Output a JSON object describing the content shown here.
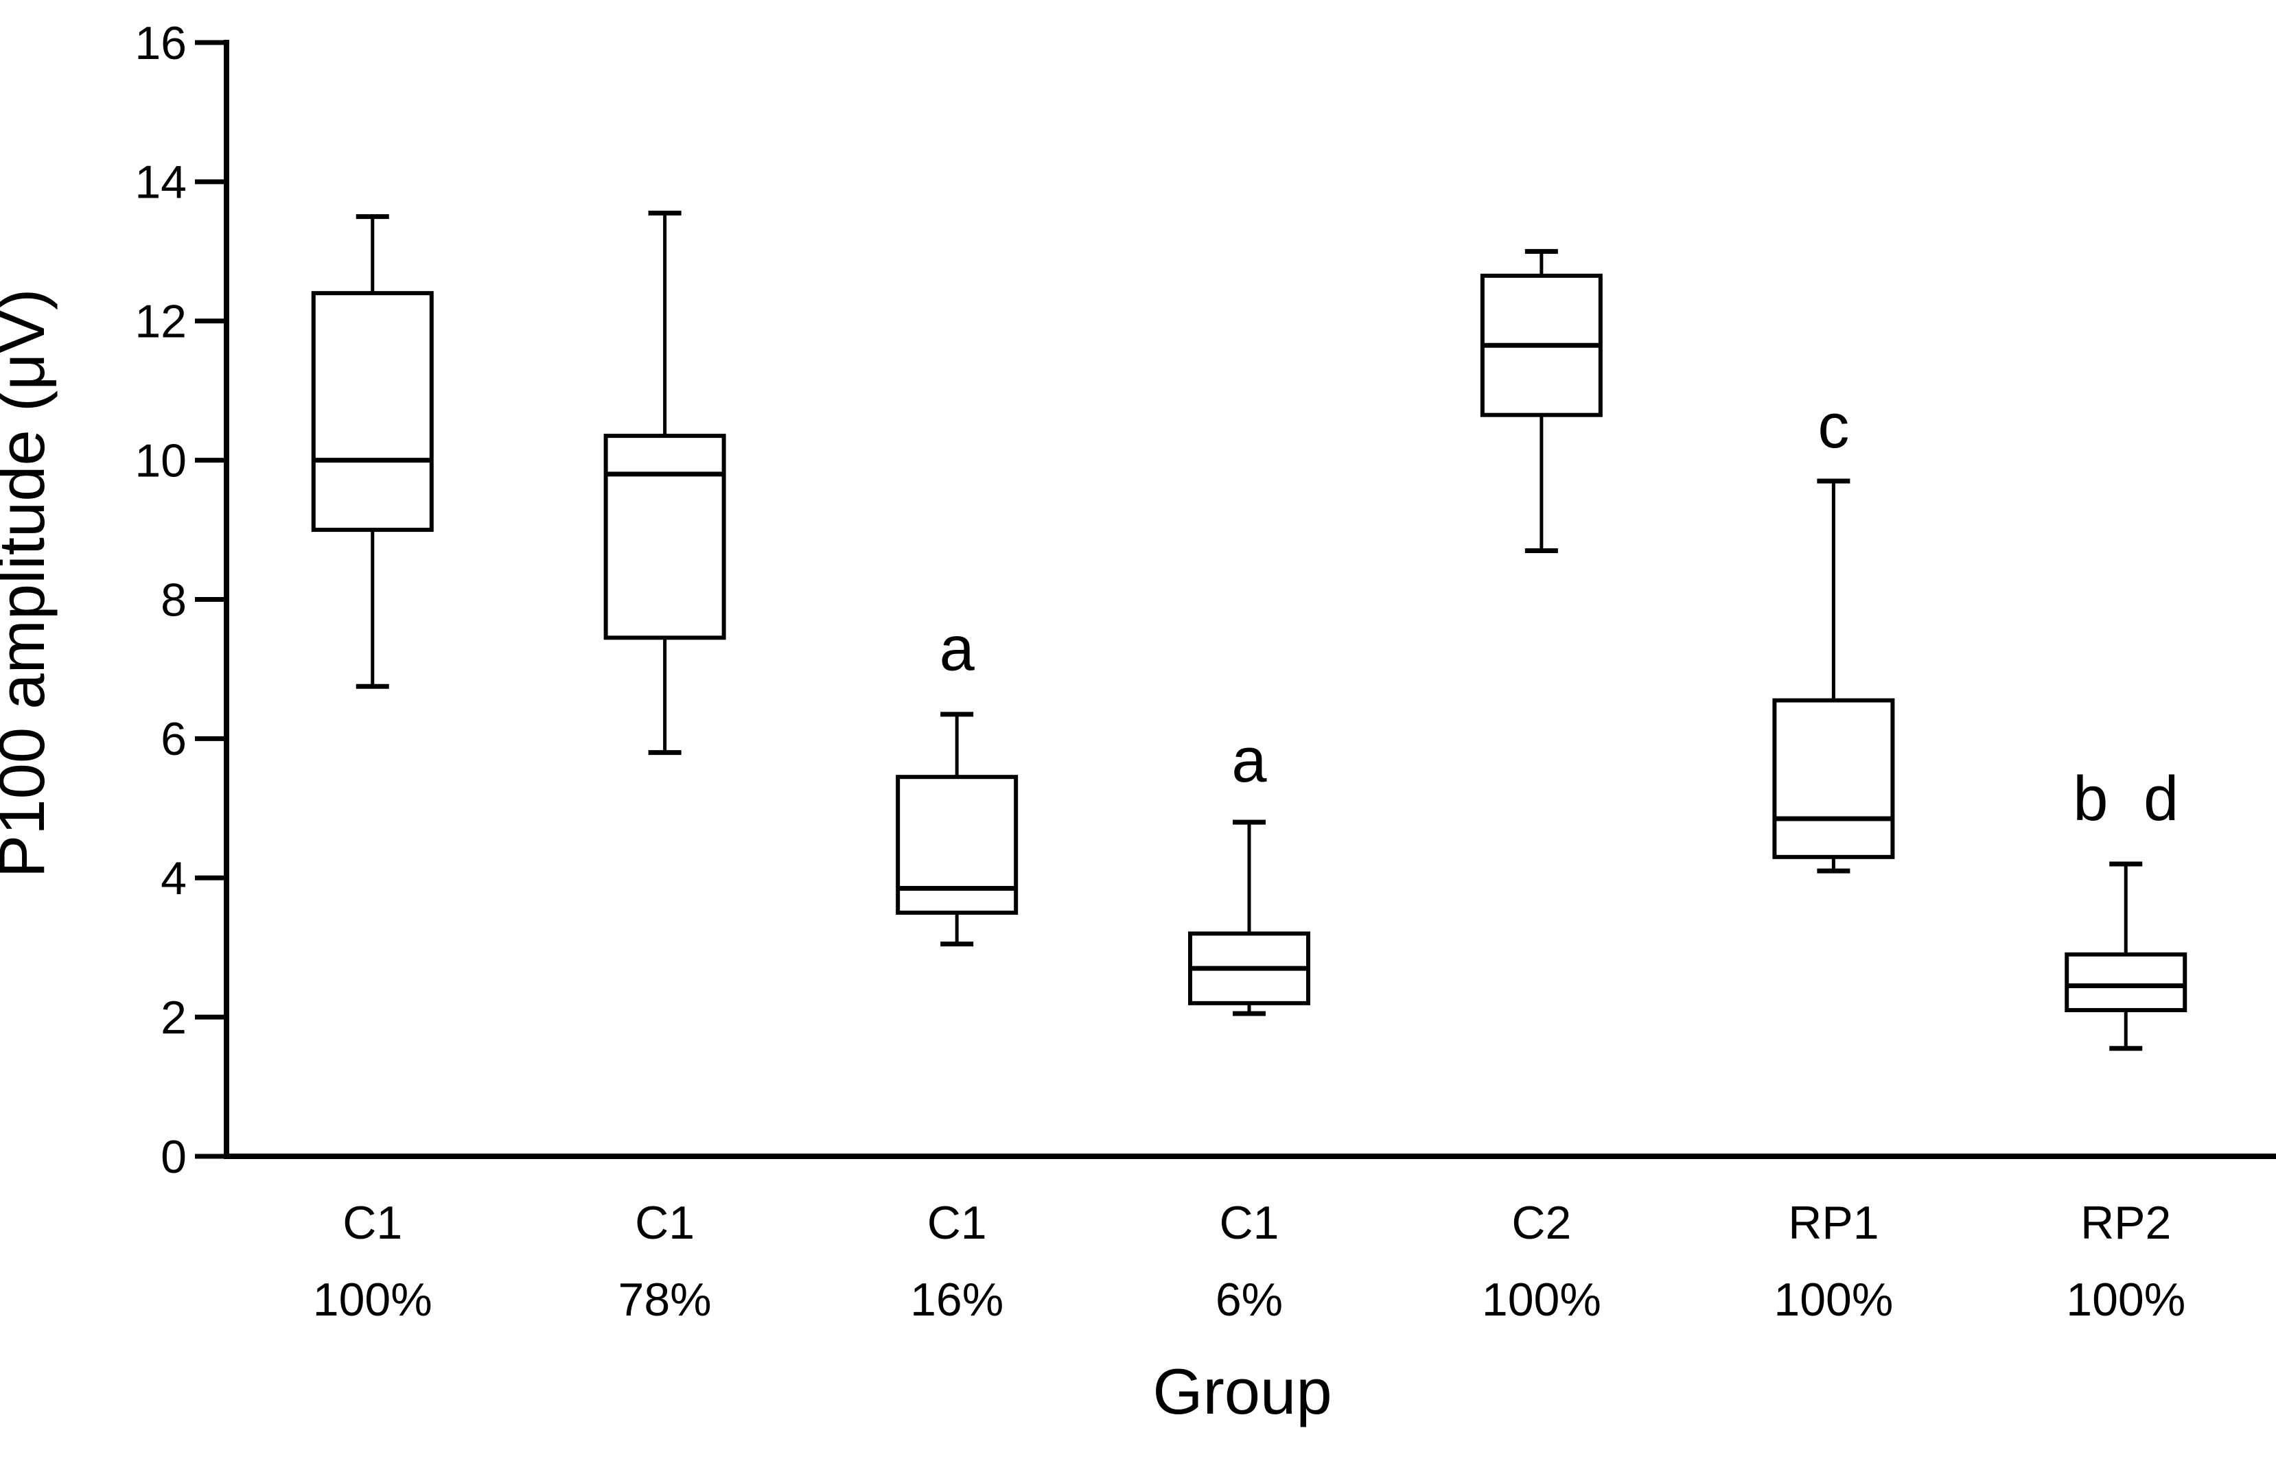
{
  "chart_data": {
    "type": "boxplot",
    "title": "",
    "xlabel": "Group",
    "ylabel": "P100 amplitude (μV)",
    "ylim": [
      0,
      16
    ],
    "yticks": [
      0,
      2,
      4,
      6,
      8,
      10,
      12,
      14,
      16
    ],
    "grid": false,
    "legend": "none",
    "orientation": "vertical",
    "categories": [
      "C1 100%",
      "C1 78%",
      "C1 16%",
      "C1 6%",
      "C2 100%",
      "RP1 100%",
      "RP2 100%"
    ],
    "boxes": [
      {
        "label_line1": "C1",
        "label_line2": "100%",
        "x_frac": 0.0714,
        "min": 6.75,
        "q1": 9.0,
        "median": 10.0,
        "q3": 12.4,
        "max": 13.5,
        "annotation": "",
        "annotation_y": null
      },
      {
        "label_line1": "C1",
        "label_line2": "78%",
        "x_frac": 0.2143,
        "min": 5.8,
        "q1": 7.45,
        "median": 9.8,
        "q3": 10.35,
        "max": 13.55,
        "annotation": "",
        "annotation_y": null
      },
      {
        "label_line1": "C1",
        "label_line2": "16%",
        "x_frac": 0.3571,
        "min": 3.05,
        "q1": 3.5,
        "median": 3.85,
        "q3": 5.45,
        "max": 6.35,
        "annotation": "a",
        "annotation_y": 7.3
      },
      {
        "label_line1": "C1",
        "label_line2": "6%",
        "x_frac": 0.5,
        "min": 2.05,
        "q1": 2.2,
        "median": 2.7,
        "q3": 3.2,
        "max": 4.8,
        "annotation": "a",
        "annotation_y": 5.7
      },
      {
        "label_line1": "C2",
        "label_line2": "100%",
        "x_frac": 0.6429,
        "min": 8.7,
        "q1": 10.65,
        "median": 11.65,
        "q3": 12.65,
        "max": 13.0,
        "annotation": "",
        "annotation_y": null
      },
      {
        "label_line1": "RP1",
        "label_line2": "100%",
        "x_frac": 0.7857,
        "min": 4.1,
        "q1": 4.3,
        "median": 4.85,
        "q3": 6.55,
        "max": 9.7,
        "annotation": "c",
        "annotation_y": 10.5
      },
      {
        "label_line1": "RP2",
        "label_line2": "100%",
        "x_frac": 0.9286,
        "min": 1.55,
        "q1": 2.1,
        "median": 2.45,
        "q3": 2.9,
        "max": 4.2,
        "annotation": "b d",
        "annotation_y": 5.15
      }
    ]
  }
}
